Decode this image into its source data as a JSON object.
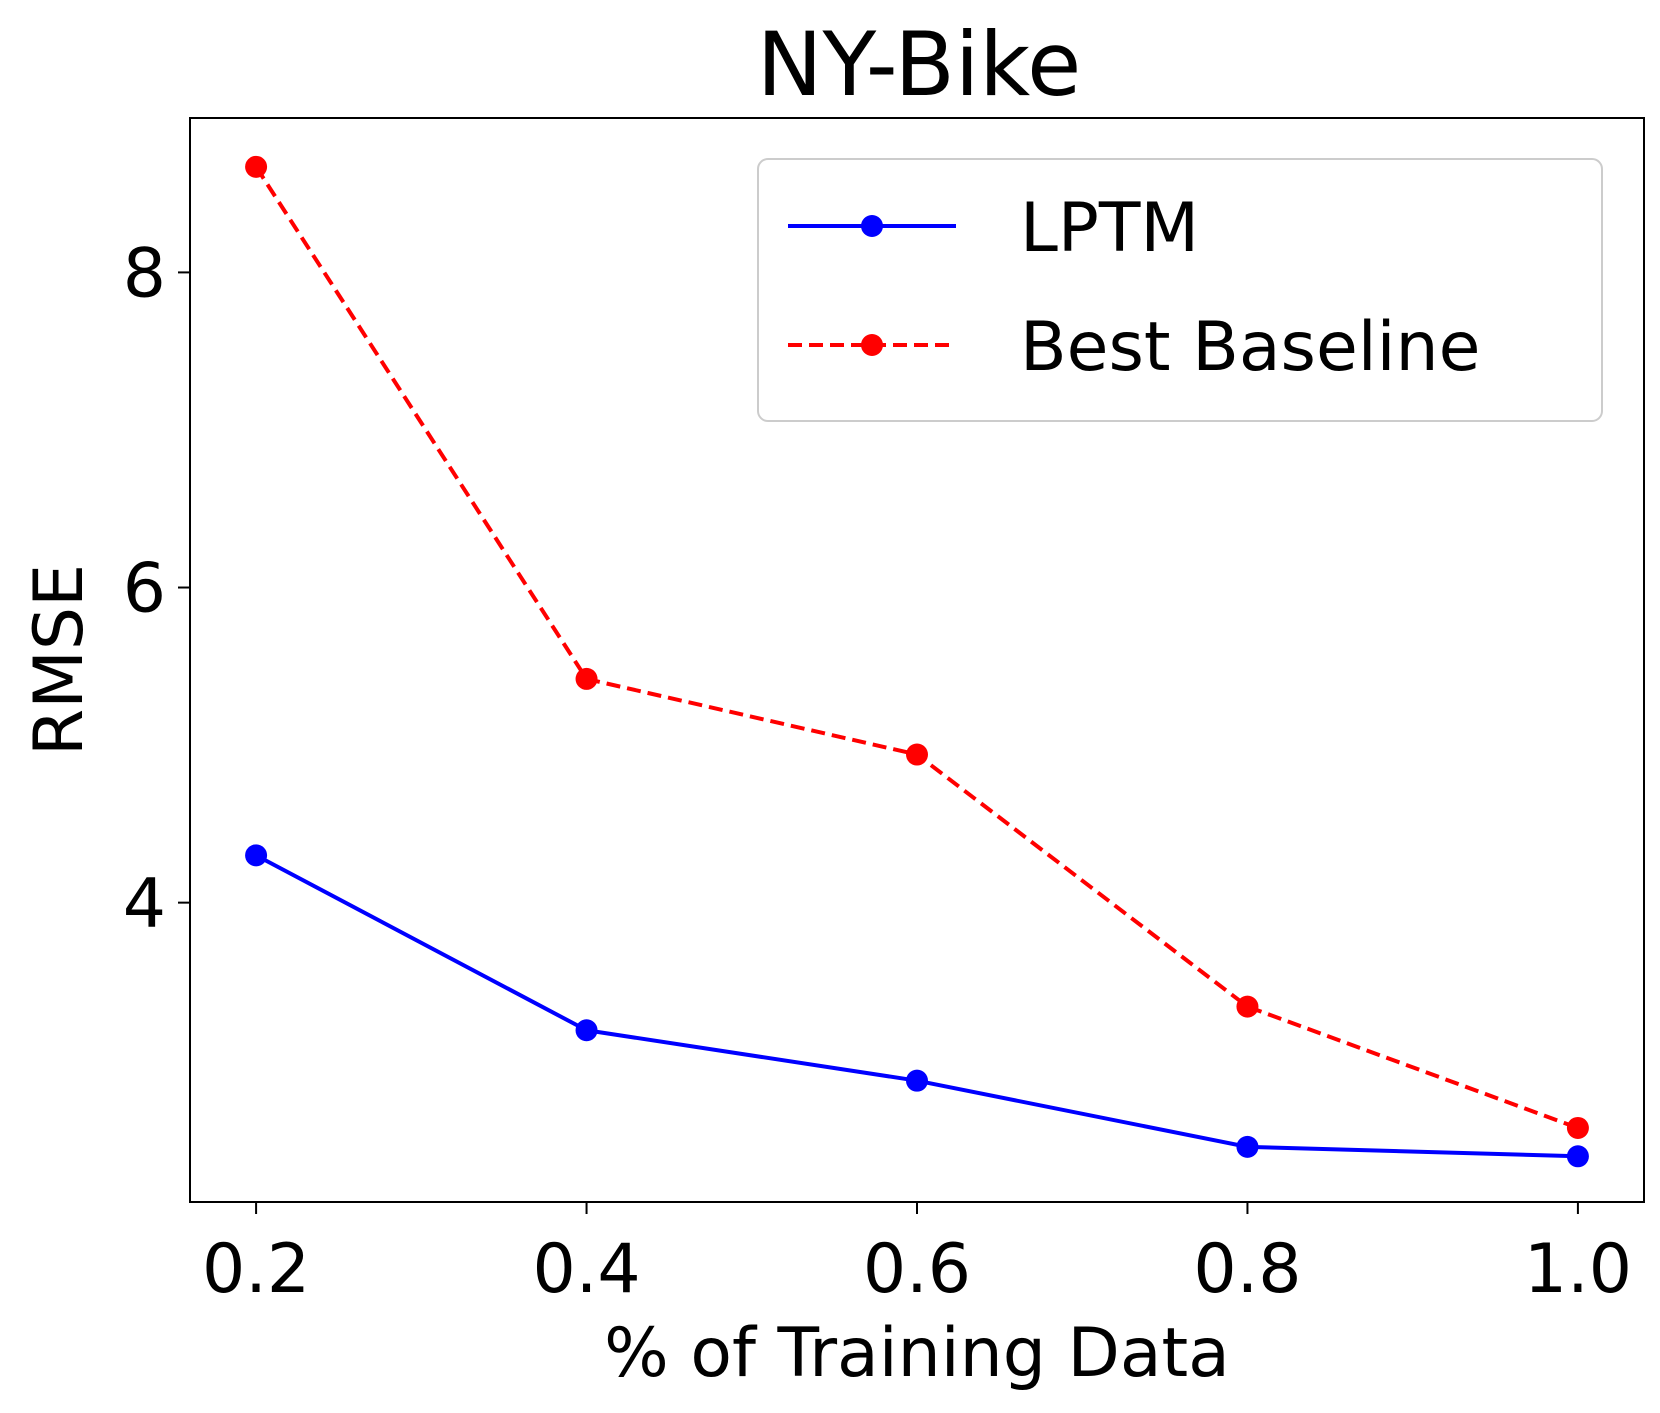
{
  "chart_data": {
    "type": "line",
    "title": "NY-Bike",
    "xlabel": "% of Training Data",
    "ylabel": "RMSE",
    "x": [
      0.2,
      0.4,
      0.6,
      0.8,
      1.0
    ],
    "x_tick_labels": [
      "0.2",
      "0.4",
      "0.6",
      "0.8",
      "1.0"
    ],
    "y_ticks": [
      4,
      6,
      8
    ],
    "y_tick_labels": [
      "4",
      "6",
      "8"
    ],
    "xlim": [
      0.16,
      1.04
    ],
    "ylim": [
      2.1,
      8.98
    ],
    "grid": false,
    "legend_position": "top-right",
    "series": [
      {
        "name": "LPTM",
        "values": [
          4.3,
          3.19,
          2.87,
          2.45,
          2.39
        ],
        "color": "#0000ff",
        "linestyle": "solid",
        "marker": "circle"
      },
      {
        "name": "Best Baseline",
        "values": [
          8.67,
          5.42,
          4.94,
          3.34,
          2.57
        ],
        "color": "#ff0000",
        "linestyle": "dashed",
        "marker": "circle"
      }
    ]
  }
}
